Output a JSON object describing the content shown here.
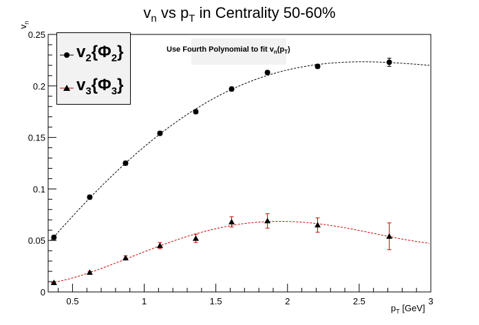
{
  "chart_data": {
    "type": "scatter",
    "title": {
      "base": "v",
      "sub1": "n",
      "mid": " vs p",
      "sub2": "T",
      "tail": " in Centrality 50-60%"
    },
    "subtitle": {
      "text": "Use Fourth Polynomial to fit v",
      "sub1": "n",
      "mid": "(p",
      "sub2": "T",
      "tail": ")"
    },
    "xlabel": {
      "base": "p",
      "sub": "T",
      "tail": " [GeV]"
    },
    "ylabel": {
      "base": "v",
      "sub": "n"
    },
    "xlim": [
      0.33,
      3.0
    ],
    "ylim": [
      0,
      0.25
    ],
    "x_ticks": [
      0.5,
      1,
      1.5,
      2,
      2.5,
      3
    ],
    "x_tick_labels": [
      "0.5",
      "1",
      "1.5",
      "2",
      "2.5",
      "3"
    ],
    "y_ticks": [
      0,
      0.05,
      0.1,
      0.15,
      0.2,
      0.25
    ],
    "y_tick_labels": [
      "0",
      "0.05",
      "0.1",
      "0.15",
      "0.2",
      "0.25"
    ],
    "grid": false,
    "legend_position": "top-left",
    "series": [
      {
        "name": {
          "base": "v",
          "sub1": "2",
          "mid": "{Φ",
          "sub2": "2",
          "tail": "}"
        },
        "marker": "circle",
        "marker_color": "#000000",
        "error_color": "#000000",
        "fit_color": "#000000",
        "x": [
          0.37,
          0.62,
          0.87,
          1.11,
          1.36,
          1.61,
          1.86,
          2.21,
          2.71
        ],
        "y": [
          0.053,
          0.092,
          0.125,
          0.154,
          0.175,
          0.197,
          0.213,
          0.219,
          0.223
        ],
        "yerr": [
          0.002,
          0.002,
          0.002,
          0.002,
          0.002,
          0.002,
          0.002,
          0.002,
          0.004
        ],
        "fit": {
          "type": "polynomial-4",
          "color": "#000000"
        }
      },
      {
        "name": {
          "base": "v",
          "sub1": "3",
          "mid": "{Φ",
          "sub2": "3",
          "tail": "}"
        },
        "marker": "triangle",
        "marker_color": "#000000",
        "error_color": "#cc0000",
        "fit_color": "#cc0000",
        "x": [
          0.37,
          0.62,
          0.87,
          1.11,
          1.36,
          1.61,
          1.86,
          2.21,
          2.71
        ],
        "y": [
          0.009,
          0.019,
          0.033,
          0.045,
          0.052,
          0.068,
          0.069,
          0.065,
          0.054
        ],
        "yerr": [
          0.001,
          0.001,
          0.002,
          0.003,
          0.004,
          0.005,
          0.007,
          0.007,
          0.013
        ],
        "fit": {
          "type": "polynomial-4",
          "color": "#cc0000"
        }
      }
    ]
  }
}
